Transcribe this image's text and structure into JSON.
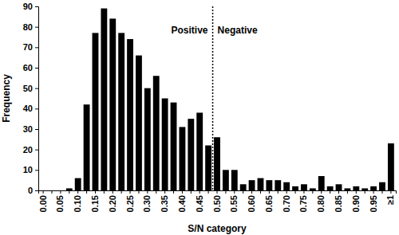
{
  "chart_data": {
    "type": "bar",
    "x_label": "S/N category",
    "y_label": "Frequency",
    "categories": [
      "0.00",
      null,
      "0.05",
      null,
      "0.10",
      null,
      "0.15",
      null,
      "0.20",
      null,
      "0.25",
      null,
      "0.30",
      null,
      "0.35",
      null,
      "0.40",
      null,
      "0.45",
      null,
      "0.50",
      null,
      "0.55",
      null,
      "0.60",
      null,
      "0.65",
      null,
      "0.70",
      null,
      "0.75",
      null,
      "0.80",
      null,
      "0.85",
      null,
      "0.90",
      null,
      "0.95",
      null,
      "≥1"
    ],
    "values": [
      0,
      0,
      0,
      1,
      6,
      42,
      77,
      89,
      84,
      77,
      74,
      66,
      50,
      56,
      45,
      43,
      31,
      35,
      38,
      22,
      26,
      10,
      10,
      3,
      5,
      6,
      5,
      5,
      4,
      2,
      3,
      1,
      7,
      2,
      3,
      1,
      2,
      1,
      2,
      4,
      23
    ],
    "color": "#000000",
    "ylim": [
      0,
      90
    ],
    "yticks": [
      0,
      10,
      20,
      30,
      40,
      50,
      60,
      70,
      80,
      90
    ],
    "grid": false,
    "threshold": {
      "category": "0.50",
      "labels": [
        "Positive",
        "Negative"
      ]
    }
  }
}
